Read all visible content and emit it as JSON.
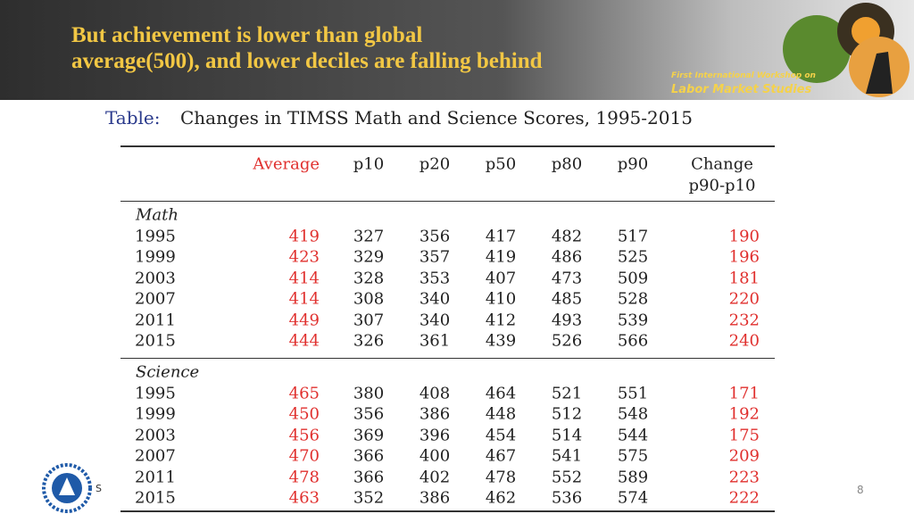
{
  "header": {
    "title_lines": [
      "But achievement is lower than global",
      "average(500), and lower deciles are falling behind"
    ],
    "logo_lines": [
      "First International Workshop on",
      "Labor Market Studies"
    ]
  },
  "table": {
    "caption_label": "Table:",
    "caption": "Changes in TIMSS Math and Science Scores, 1995-2015",
    "columns": [
      "Average",
      "p10",
      "p20",
      "p50",
      "p80",
      "p90",
      "Change"
    ],
    "column_sub": "p90-p10",
    "sections": [
      {
        "name": "Math",
        "rows": [
          [
            "1995",
            419,
            327,
            356,
            417,
            482,
            517,
            190
          ],
          [
            "1999",
            423,
            329,
            357,
            419,
            486,
            525,
            196
          ],
          [
            "2003",
            414,
            328,
            353,
            407,
            473,
            509,
            181
          ],
          [
            "2007",
            414,
            308,
            340,
            410,
            485,
            528,
            220
          ],
          [
            "2011",
            449,
            307,
            340,
            412,
            493,
            539,
            232
          ],
          [
            "2015",
            444,
            326,
            361,
            439,
            526,
            566,
            240
          ]
        ]
      },
      {
        "name": "Science",
        "rows": [
          [
            "1995",
            465,
            380,
            408,
            464,
            521,
            551,
            171
          ],
          [
            "1999",
            450,
            356,
            386,
            448,
            512,
            548,
            192
          ],
          [
            "2003",
            456,
            369,
            396,
            454,
            514,
            544,
            175
          ],
          [
            "2007",
            470,
            366,
            400,
            467,
            541,
            575,
            209
          ],
          [
            "2011",
            478,
            366,
            402,
            478,
            552,
            589,
            223
          ],
          [
            "2015",
            463,
            352,
            386,
            462,
            536,
            574,
            222
          ]
        ]
      }
    ]
  },
  "footer": {
    "left_text": "S",
    "page_number": "8"
  }
}
